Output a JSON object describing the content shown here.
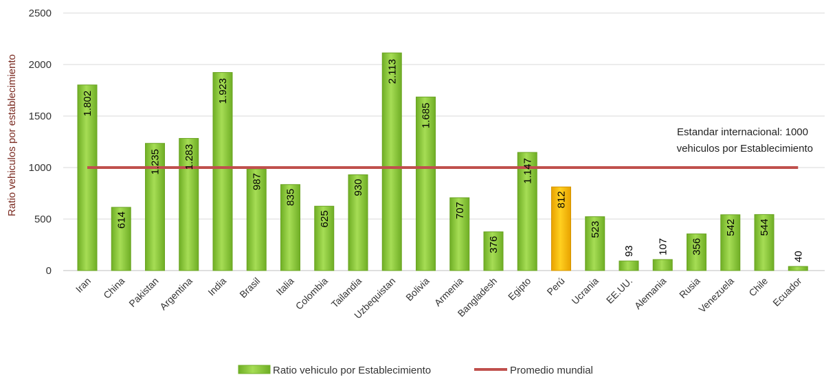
{
  "chart_data": {
    "type": "bar",
    "title": "",
    "xlabel": "",
    "ylabel": "Ratio vehiculos por establecimiento",
    "ylim": [
      0,
      2500
    ],
    "yticks": [
      0,
      500,
      1000,
      1500,
      2000,
      2500
    ],
    "grid": true,
    "legend_position": "bottom",
    "categories": [
      "Iran",
      "China",
      "Pakistan",
      "Argentina",
      "India",
      "Brasil",
      "Italia",
      "Colombia",
      "Tailandia",
      "Uzbequistan",
      "Bolivia",
      "Armenia",
      "Bangladesh",
      "Egipto",
      "Perú",
      "Ucrania",
      "EE.UU.",
      "Alemania",
      "Rusia",
      "Venezuela",
      "Chile",
      "Ecuador"
    ],
    "values": [
      1802,
      614,
      1235,
      1283,
      1923,
      987,
      835,
      625,
      930,
      2113,
      1685,
      707,
      376,
      1147,
      812,
      523,
      93,
      107,
      356,
      542,
      544,
      40
    ],
    "data_labels": [
      "1.802",
      "614",
      "1.235",
      "1.283",
      "1.923",
      "987",
      "835",
      "625",
      "930",
      "2.113",
      "1.685",
      "707",
      "376",
      "1.147",
      "812",
      "523",
      "93",
      "107",
      "356",
      "542",
      "544",
      "40"
    ],
    "highlight_category": "Perú",
    "colors": {
      "bar": "#8fce3c",
      "bar_highlight": "#f5b800",
      "line": "#c0504d",
      "label_outside": "#1f3864"
    },
    "series": [
      {
        "name": "Ratio vehiculo por Establecimiento",
        "type": "bar"
      },
      {
        "name": "Promedio mundial",
        "type": "line",
        "value": 1000
      }
    ],
    "annotation": [
      "Estandar internacional: 1000",
      "vehiculos por Establecimiento"
    ]
  }
}
